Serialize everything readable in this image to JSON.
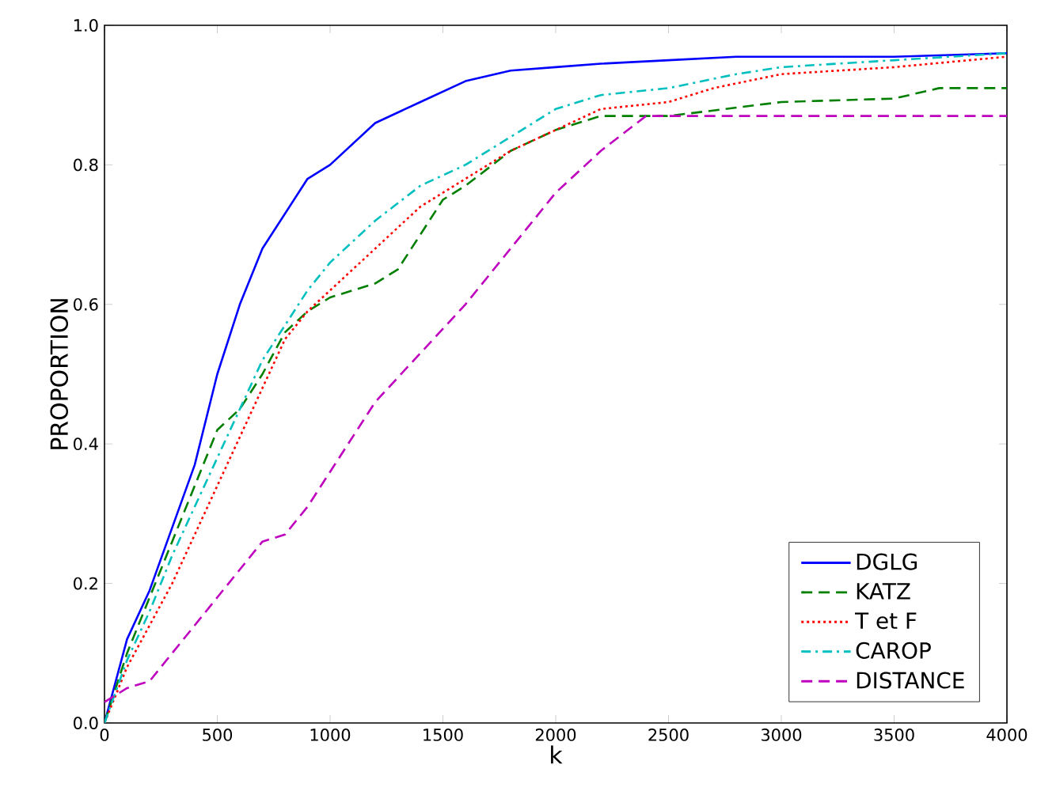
{
  "chart_data": {
    "type": "line",
    "xlabel": "k",
    "ylabel": "PROPORTION",
    "xlim": [
      0,
      4000
    ],
    "ylim": [
      0,
      1.0
    ],
    "xticks": [
      0,
      500,
      1000,
      1500,
      2000,
      2500,
      3000,
      3500,
      4000
    ],
    "yticks": [
      {
        "value": 0,
        "label": "0.0"
      },
      {
        "value": 0.2,
        "label": "0.2"
      },
      {
        "value": 0.4,
        "label": "0.4"
      },
      {
        "value": 0.6,
        "label": "0.6"
      },
      {
        "value": 0.8,
        "label": "0.8"
      },
      {
        "value": 1.0,
        "label": "1.0"
      }
    ],
    "grid": false,
    "legend": "bottom right",
    "marker": "none",
    "series": [
      {
        "name": "DGLG",
        "color": "#0000ff",
        "line_style": "solid",
        "x": [
          0,
          100,
          200,
          300,
          400,
          500,
          600,
          700,
          800,
          900,
          1000,
          1200,
          1400,
          1600,
          1800,
          2000,
          2200,
          2500,
          2800,
          3000,
          3500,
          4000
        ],
        "values": [
          0,
          0.12,
          0.19,
          0.28,
          0.37,
          0.5,
          0.6,
          0.68,
          0.73,
          0.78,
          0.8,
          0.86,
          0.89,
          0.92,
          0.935,
          0.94,
          0.945,
          0.95,
          0.955,
          0.955,
          0.955,
          0.96
        ]
      },
      {
        "name": "KATZ",
        "color": "#007f00",
        "line_style": "dashed",
        "x": [
          0,
          100,
          200,
          300,
          400,
          500,
          600,
          700,
          800,
          900,
          1000,
          1100,
          1200,
          1300,
          1400,
          1500,
          1600,
          1800,
          2000,
          2200,
          2500,
          3000,
          3500,
          3700,
          4000
        ],
        "values": [
          0,
          0.1,
          0.18,
          0.26,
          0.34,
          0.42,
          0.45,
          0.5,
          0.56,
          0.59,
          0.61,
          0.62,
          0.63,
          0.65,
          0.7,
          0.75,
          0.77,
          0.82,
          0.85,
          0.87,
          0.87,
          0.89,
          0.895,
          0.91,
          0.91
        ]
      },
      {
        "name": "T et F",
        "color": "#ff0000",
        "line_style": "dotted",
        "x": [
          0,
          100,
          200,
          300,
          400,
          500,
          600,
          700,
          800,
          900,
          1000,
          1200,
          1400,
          1600,
          1800,
          2000,
          2200,
          2500,
          2700,
          3000,
          3500,
          4000
        ],
        "values": [
          0,
          0.08,
          0.14,
          0.2,
          0.27,
          0.34,
          0.41,
          0.48,
          0.55,
          0.59,
          0.62,
          0.68,
          0.74,
          0.78,
          0.82,
          0.85,
          0.88,
          0.89,
          0.91,
          0.93,
          0.94,
          0.955
        ]
      },
      {
        "name": "CAROP",
        "color": "#00bfbf",
        "line_style": "dashdot",
        "x": [
          0,
          100,
          200,
          300,
          400,
          500,
          600,
          700,
          800,
          900,
          1000,
          1200,
          1400,
          1600,
          1800,
          2000,
          2200,
          2500,
          2800,
          3000,
          3500,
          4000
        ],
        "values": [
          0,
          0.09,
          0.16,
          0.24,
          0.31,
          0.38,
          0.45,
          0.52,
          0.57,
          0.62,
          0.66,
          0.72,
          0.77,
          0.8,
          0.84,
          0.88,
          0.9,
          0.91,
          0.93,
          0.94,
          0.95,
          0.96
        ]
      },
      {
        "name": "DISTANCE",
        "color": "#bf00bf",
        "line_style": "dashed",
        "x": [
          0,
          100,
          200,
          300,
          400,
          500,
          600,
          700,
          800,
          900,
          1000,
          1200,
          1400,
          1600,
          1800,
          2000,
          2200,
          2400,
          2600,
          3000,
          4000
        ],
        "values": [
          0.03,
          0.05,
          0.06,
          0.1,
          0.14,
          0.18,
          0.22,
          0.26,
          0.27,
          0.31,
          0.36,
          0.46,
          0.53,
          0.6,
          0.68,
          0.76,
          0.82,
          0.87,
          0.87,
          0.87,
          0.87
        ]
      }
    ]
  }
}
